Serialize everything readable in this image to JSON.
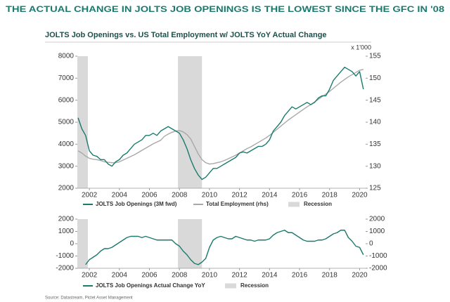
{
  "headline": "THE ACTUAL CHANGE IN JOLTS JOB OPENINGS IS THE LOWEST SINCE THE GFC IN '08",
  "source": "Source: Datastream, Pictet Asset Management",
  "chart_data": [
    {
      "type": "line",
      "title": "JOLTS Job Openings vs. US Total Employment w/ JOLTS YoY Actual Change",
      "y2_unit": "x 1'000",
      "x": [
        2001.25,
        2001.5,
        2001.75,
        2002,
        2002.25,
        2002.5,
        2002.75,
        2003,
        2003.25,
        2003.5,
        2003.75,
        2004,
        2004.25,
        2004.5,
        2004.75,
        2005,
        2005.25,
        2005.5,
        2005.75,
        2006,
        2006.25,
        2006.5,
        2006.75,
        2007,
        2007.25,
        2007.5,
        2007.75,
        2008,
        2008.25,
        2008.5,
        2008.75,
        2009,
        2009.25,
        2009.5,
        2009.75,
        2010,
        2010.25,
        2010.5,
        2010.75,
        2011,
        2011.25,
        2011.5,
        2011.75,
        2012,
        2012.25,
        2012.5,
        2012.75,
        2013,
        2013.25,
        2013.5,
        2013.75,
        2014,
        2014.25,
        2014.5,
        2014.75,
        2015,
        2015.25,
        2015.5,
        2015.75,
        2016,
        2016.25,
        2016.5,
        2016.75,
        2017,
        2017.25,
        2017.5,
        2017.75,
        2018,
        2018.25,
        2018.5,
        2018.75,
        2019,
        2019.25,
        2019.5,
        2019.75,
        2020,
        2020.25
      ],
      "series": [
        {
          "name": "JOLTS Job Openings (3M fwd)",
          "color": "#1a7a6e",
          "values": [
            5200,
            4700,
            4400,
            3700,
            3500,
            3450,
            3300,
            3300,
            3100,
            3000,
            3200,
            3300,
            3500,
            3600,
            3800,
            4000,
            4100,
            4200,
            4400,
            4400,
            4500,
            4400,
            4600,
            4700,
            4800,
            4700,
            4600,
            4500,
            4200,
            3800,
            3300,
            2900,
            2600,
            2400,
            2500,
            2700,
            2900,
            2900,
            3000,
            3100,
            3200,
            3300,
            3400,
            3600,
            3650,
            3600,
            3700,
            3800,
            3900,
            3900,
            4000,
            4200,
            4600,
            4800,
            5000,
            5300,
            5500,
            5700,
            5600,
            5700,
            5800,
            5900,
            5800,
            5900,
            6100,
            6200,
            6200,
            6500,
            6900,
            7100,
            7300,
            7500,
            7400,
            7300,
            7100,
            7300,
            6500
          ]
        },
        {
          "name": "Total Employment (rhs)",
          "color": "#a8a8a8",
          "axis": "y2",
          "values": [
            133.5,
            133,
            132.3,
            131.8,
            131.6,
            131.5,
            131.3,
            131,
            130.9,
            130.8,
            130.8,
            131,
            131.4,
            131.8,
            132.2,
            132.6,
            133.1,
            133.6,
            134.1,
            134.6,
            135.1,
            135.5,
            135.9,
            136.8,
            137.3,
            137.7,
            138,
            138.1,
            137.8,
            137.2,
            136.2,
            134.5,
            132.8,
            131.5,
            130.8,
            130.5,
            130.6,
            130.8,
            131,
            131.3,
            131.7,
            132.1,
            132.5,
            133,
            133.5,
            134,
            134.4,
            134.9,
            135.4,
            135.9,
            136.4,
            137,
            137.7,
            138.4,
            139.1,
            139.8,
            140.5,
            141.1,
            141.7,
            142.3,
            142.9,
            143.5,
            144,
            144.6,
            145.2,
            145.8,
            146.4,
            147,
            147.7,
            148.4,
            149.1,
            149.7,
            150.3,
            150.8,
            151.3,
            151.8,
            152
          ]
        }
      ],
      "recessions": [
        [
          2001.2,
          2001.9
        ],
        [
          2007.9,
          2009.5
        ]
      ],
      "recession_label": "Recession",
      "recession_color": "#d9d9d9",
      "xlim": [
        2001.2,
        2020.4
      ],
      "xticks": [
        2002,
        2004,
        2006,
        2008,
        2010,
        2012,
        2014,
        2016,
        2018,
        2020
      ],
      "ylim": [
        2000,
        8000
      ],
      "yticks": [
        2000,
        3000,
        4000,
        5000,
        6000,
        7000,
        8000
      ],
      "y2lim": [
        125,
        155
      ],
      "y2ticks": [
        125,
        130,
        135,
        140,
        145,
        150,
        155
      ]
    },
    {
      "type": "line",
      "x": [
        2001.25,
        2001.5,
        2001.75,
        2002,
        2002.25,
        2002.5,
        2002.75,
        2003,
        2003.25,
        2003.5,
        2003.75,
        2004,
        2004.25,
        2004.5,
        2004.75,
        2005,
        2005.25,
        2005.5,
        2005.75,
        2006,
        2006.25,
        2006.5,
        2006.75,
        2007,
        2007.25,
        2007.5,
        2007.75,
        2008,
        2008.25,
        2008.5,
        2008.75,
        2009,
        2009.25,
        2009.5,
        2009.75,
        2010,
        2010.25,
        2010.5,
        2010.75,
        2011,
        2011.25,
        2011.5,
        2011.75,
        2012,
        2012.25,
        2012.5,
        2012.75,
        2013,
        2013.25,
        2013.5,
        2013.75,
        2014,
        2014.25,
        2014.5,
        2014.75,
        2015,
        2015.25,
        2015.5,
        2015.75,
        2016,
        2016.25,
        2016.5,
        2016.75,
        2017,
        2017.25,
        2017.5,
        2017.75,
        2018,
        2018.25,
        2018.5,
        2018.75,
        2019,
        2019.25,
        2019.5,
        2019.75,
        2020,
        2020.25
      ],
      "series": [
        {
          "name": "JOLTS Job Openings Actual Change YoY",
          "color": "#1a7a6e",
          "values": [
            null,
            null,
            -1700,
            -1300,
            -1100,
            -900,
            -600,
            -400,
            -400,
            -300,
            -100,
            100,
            300,
            500,
            600,
            600,
            600,
            500,
            600,
            500,
            400,
            300,
            300,
            300,
            300,
            300,
            0,
            -200,
            -600,
            -900,
            -1300,
            -1600,
            -1700,
            -1500,
            -1200,
            -300,
            300,
            500,
            600,
            500,
            400,
            400,
            600,
            500,
            400,
            300,
            300,
            200,
            300,
            300,
            300,
            400,
            700,
            900,
            1000,
            1100,
            900,
            900,
            700,
            500,
            300,
            200,
            200,
            200,
            300,
            300,
            400,
            600,
            800,
            900,
            1100,
            1100,
            500,
            200,
            -200,
            -300,
            -900
          ]
        }
      ],
      "recessions": [
        [
          2001.2,
          2001.9
        ],
        [
          2007.9,
          2009.5
        ]
      ],
      "recession_label": "Recession",
      "recession_color": "#d9d9d9",
      "xlim": [
        2001.2,
        2020.4
      ],
      "xticks": [
        2002,
        2004,
        2006,
        2008,
        2010,
        2012,
        2014,
        2016,
        2018,
        2020
      ],
      "ylim": [
        -2000,
        2000
      ],
      "yticks": [
        -2000,
        -1000,
        0,
        1000,
        2000
      ],
      "y2lim": [
        -2000,
        2000
      ],
      "y2ticks": [
        -2000,
        -1000,
        0,
        1000,
        2000
      ]
    }
  ]
}
